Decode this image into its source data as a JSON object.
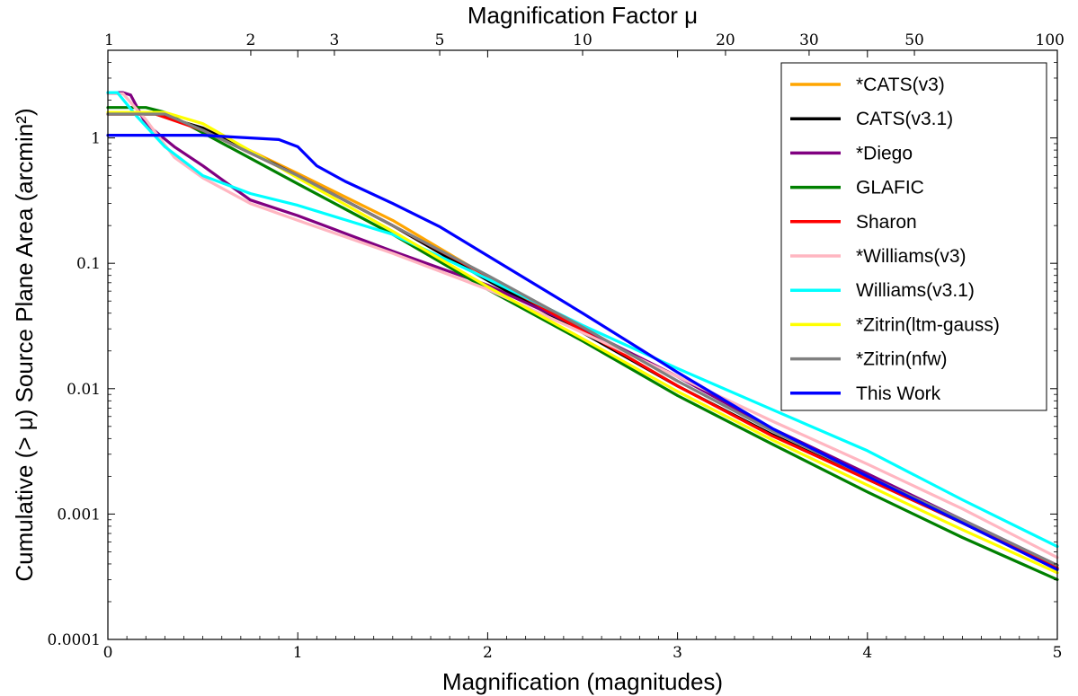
{
  "chart_data": {
    "type": "line",
    "xlabel": "Magnification (magnitudes)",
    "ylabel": "Cumulative (> μ) Source Plane Area (arcmin²)",
    "top_xlabel": "Magnification Factor μ",
    "xlim": [
      0,
      5
    ],
    "ylim": [
      0.0001,
      5
    ],
    "yscale": "log",
    "x_ticks": [
      "0",
      "1",
      "2",
      "3",
      "4",
      "5"
    ],
    "y_ticks": [
      {
        "value": 0.0001,
        "label": "0.0001"
      },
      {
        "value": 0.001,
        "label": "0.001"
      },
      {
        "value": 0.01,
        "label": "0.01"
      },
      {
        "value": 0.1,
        "label": "0.1"
      },
      {
        "value": 1,
        "label": "1"
      }
    ],
    "top_ticks": [
      {
        "value": 1,
        "label": "1"
      },
      {
        "value": 2,
        "label": "2"
      },
      {
        "value": 3,
        "label": "3"
      },
      {
        "value": 5,
        "label": "5"
      },
      {
        "value": 10,
        "label": "10"
      },
      {
        "value": 20,
        "label": "20"
      },
      {
        "value": 30,
        "label": "30"
      },
      {
        "value": 50,
        "label": "50"
      },
      {
        "value": 100,
        "label": "100"
      }
    ],
    "legend_position": "top-right",
    "grid": false,
    "series": [
      {
        "name": "*CATS(v3)",
        "color": "#FFA500",
        "points": [
          [
            0,
            1.55
          ],
          [
            0.25,
            1.55
          ],
          [
            0.5,
            1.2
          ],
          [
            1,
            0.52
          ],
          [
            1.5,
            0.22
          ],
          [
            2,
            0.078
          ],
          [
            2.5,
            0.029
          ],
          [
            3,
            0.0105
          ],
          [
            3.5,
            0.0042
          ],
          [
            4,
            0.0019
          ],
          [
            4.5,
            0.00085
          ],
          [
            5,
            0.00037
          ]
        ]
      },
      {
        "name": "CATS(v3.1)",
        "color": "#000000",
        "points": [
          [
            0,
            1.55
          ],
          [
            0.25,
            1.55
          ],
          [
            0.5,
            1.2
          ],
          [
            1,
            0.5
          ],
          [
            1.5,
            0.2
          ],
          [
            2,
            0.073
          ],
          [
            2.5,
            0.028
          ],
          [
            3,
            0.0105
          ],
          [
            3.5,
            0.0043
          ],
          [
            4,
            0.0019
          ],
          [
            4.5,
            0.00085
          ],
          [
            5,
            0.00037
          ]
        ]
      },
      {
        "name": "*Diego",
        "color": "#800080",
        "points": [
          [
            0,
            2.3
          ],
          [
            0.08,
            2.3
          ],
          [
            0.12,
            2.2
          ],
          [
            0.2,
            1.3
          ],
          [
            0.35,
            0.85
          ],
          [
            0.5,
            0.6
          ],
          [
            0.75,
            0.32
          ],
          [
            1,
            0.24
          ],
          [
            1.5,
            0.125
          ],
          [
            2,
            0.067
          ],
          [
            2.5,
            0.03
          ],
          [
            3,
            0.0125
          ],
          [
            3.5,
            0.0048
          ],
          [
            4,
            0.0021
          ],
          [
            4.5,
            0.0009
          ],
          [
            5,
            0.00039
          ]
        ]
      },
      {
        "name": "GLAFIC",
        "color": "#008000",
        "points": [
          [
            0,
            1.75
          ],
          [
            0.2,
            1.75
          ],
          [
            0.3,
            1.6
          ],
          [
            0.5,
            1.1
          ],
          [
            1,
            0.43
          ],
          [
            1.5,
            0.17
          ],
          [
            2,
            0.062
          ],
          [
            2.5,
            0.024
          ],
          [
            3,
            0.0088
          ],
          [
            3.5,
            0.0036
          ],
          [
            4,
            0.0015
          ],
          [
            4.5,
            0.00065
          ],
          [
            5,
            0.0003
          ]
        ]
      },
      {
        "name": "Sharon",
        "color": "#FF0000",
        "points": [
          [
            0,
            1.55
          ],
          [
            0.25,
            1.55
          ],
          [
            0.5,
            1.15
          ],
          [
            1,
            0.5
          ],
          [
            1.5,
            0.2
          ],
          [
            2,
            0.079
          ],
          [
            2.5,
            0.029
          ],
          [
            3,
            0.0105
          ],
          [
            3.5,
            0.0042
          ],
          [
            4,
            0.0019
          ],
          [
            4.5,
            0.00085
          ],
          [
            5,
            0.00037
          ]
        ]
      },
      {
        "name": "*Williams(v3)",
        "color": "#FFB6C1",
        "points": [
          [
            0,
            2.25
          ],
          [
            0.08,
            2.25
          ],
          [
            0.2,
            1.4
          ],
          [
            0.35,
            0.7
          ],
          [
            0.5,
            0.48
          ],
          [
            0.75,
            0.3
          ],
          [
            1,
            0.22
          ],
          [
            1.5,
            0.12
          ],
          [
            2,
            0.062
          ],
          [
            2.5,
            0.028
          ],
          [
            3,
            0.0125
          ],
          [
            3.5,
            0.0055
          ],
          [
            4,
            0.0025
          ],
          [
            4.5,
            0.0011
          ],
          [
            5,
            0.00045
          ]
        ]
      },
      {
        "name": "Williams(v3.1)",
        "color": "#00FFFF",
        "points": [
          [
            0,
            2.3
          ],
          [
            0.05,
            2.3
          ],
          [
            0.15,
            1.5
          ],
          [
            0.3,
            0.85
          ],
          [
            0.5,
            0.5
          ],
          [
            0.75,
            0.36
          ],
          [
            1,
            0.29
          ],
          [
            1.5,
            0.17
          ],
          [
            2,
            0.075
          ],
          [
            2.5,
            0.032
          ],
          [
            3,
            0.0145
          ],
          [
            3.5,
            0.0068
          ],
          [
            4,
            0.0032
          ],
          [
            4.5,
            0.0013
          ],
          [
            5,
            0.00055
          ]
        ]
      },
      {
        "name": "*Zitrin(ltm-gauss)",
        "color": "#FFFF00",
        "points": [
          [
            0,
            1.6
          ],
          [
            0.3,
            1.6
          ],
          [
            0.5,
            1.3
          ],
          [
            1,
            0.48
          ],
          [
            1.5,
            0.18
          ],
          [
            2,
            0.065
          ],
          [
            2.5,
            0.025
          ],
          [
            3,
            0.0095
          ],
          [
            3.5,
            0.0039
          ],
          [
            4,
            0.0017
          ],
          [
            4.5,
            0.00075
          ],
          [
            5,
            0.00034
          ]
        ]
      },
      {
        "name": "*Zitrin(nfw)",
        "color": "#808080",
        "points": [
          [
            0,
            1.55
          ],
          [
            0.3,
            1.55
          ],
          [
            0.5,
            1.15
          ],
          [
            1,
            0.5
          ],
          [
            1.5,
            0.2
          ],
          [
            2,
            0.08
          ],
          [
            2.5,
            0.031
          ],
          [
            3,
            0.0115
          ],
          [
            3.5,
            0.0046
          ],
          [
            4,
            0.002
          ],
          [
            4.5,
            0.0009
          ],
          [
            5,
            0.00039
          ]
        ]
      },
      {
        "name": "This Work",
        "color": "#0000FF",
        "points": [
          [
            0,
            1.05
          ],
          [
            0.5,
            1.05
          ],
          [
            0.9,
            0.97
          ],
          [
            1,
            0.85
          ],
          [
            1.1,
            0.6
          ],
          [
            1.25,
            0.45
          ],
          [
            1.5,
            0.3
          ],
          [
            1.75,
            0.195
          ],
          [
            2,
            0.115
          ],
          [
            2.5,
            0.04
          ],
          [
            3,
            0.0135
          ],
          [
            3.5,
            0.0048
          ],
          [
            4,
            0.002
          ],
          [
            4.5,
            0.00085
          ],
          [
            5,
            0.00036
          ]
        ]
      }
    ]
  }
}
